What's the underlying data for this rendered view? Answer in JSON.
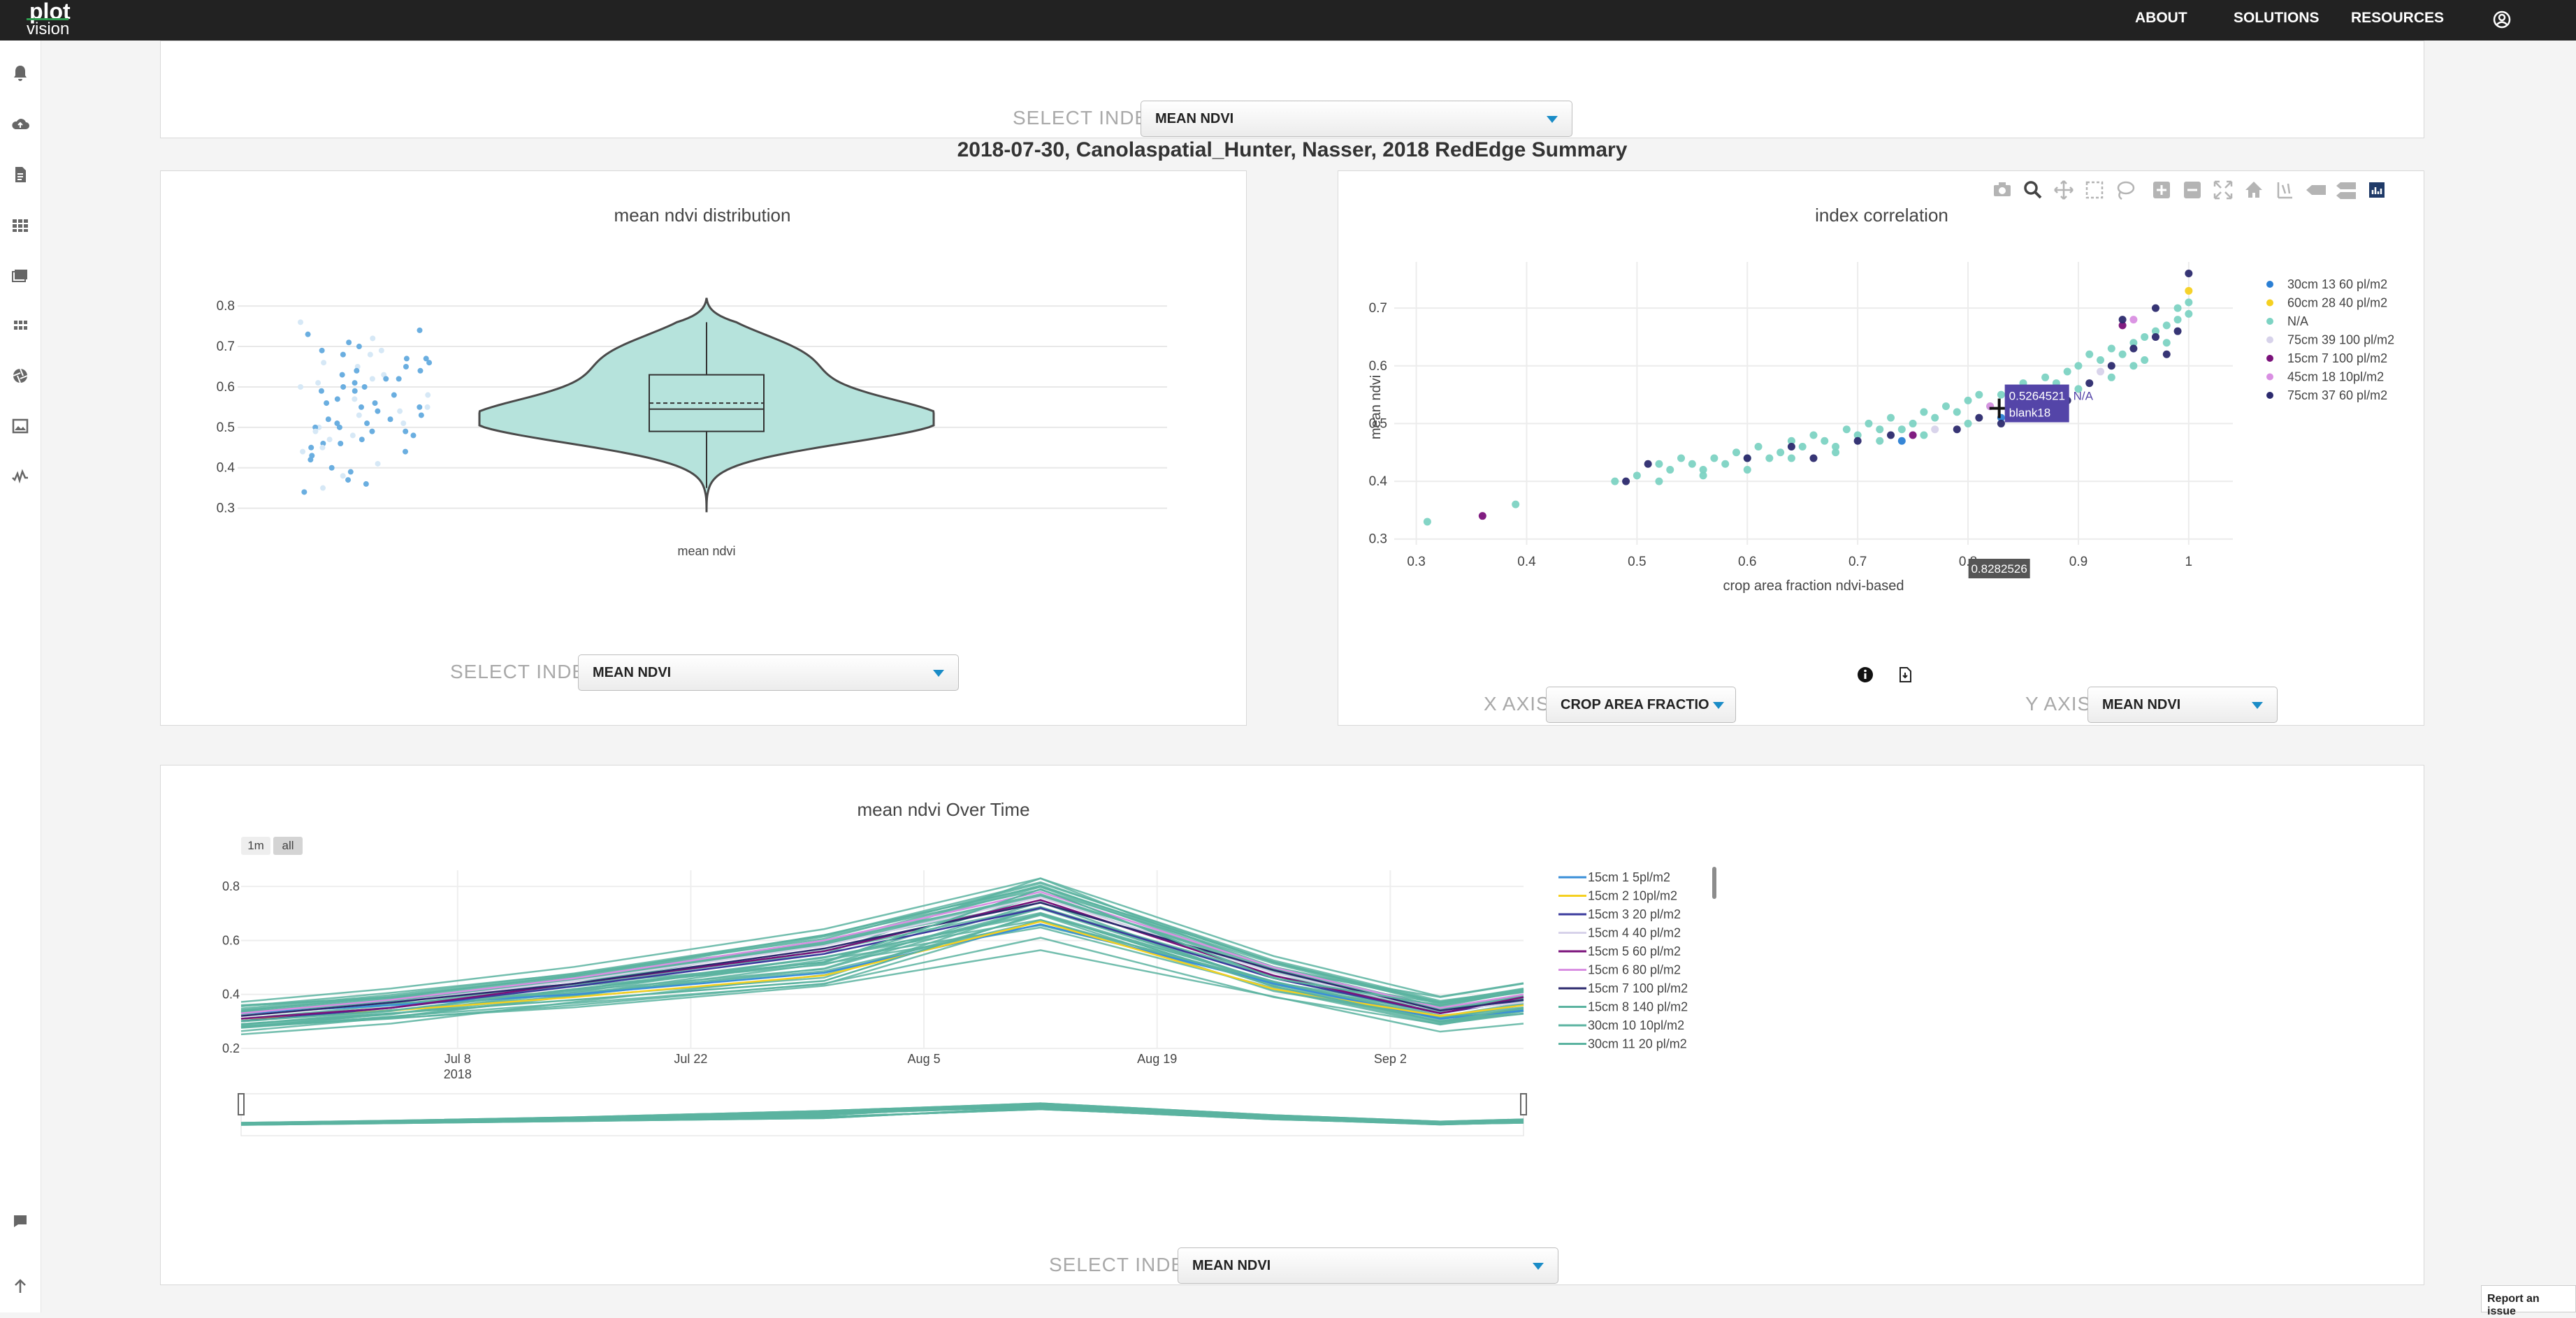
{
  "nav": {
    "logo_top": "plot",
    "logo_bottom": "vision",
    "links": [
      "ABOUT",
      "SOLUTIONS",
      "RESOURCES"
    ]
  },
  "sidebar": {
    "icons": [
      "bell-icon",
      "cloud-upload-icon",
      "document-icon",
      "grid-icon",
      "images-icon",
      "apps-icon",
      "aperture-icon",
      "gallery-icon",
      "chart-check-icon"
    ],
    "bottom_icons": [
      "comment-icon",
      "arrow-up-icon"
    ]
  },
  "top_panel": {
    "select_label": "SELECT INDEX",
    "select_value": "MEAN NDVI"
  },
  "page_title": "2018-07-30, Canolaspatial_Hunter, Nasser, 2018 RedEdge Summary",
  "distribution": {
    "select_label": "SELECT INDEX",
    "select_value": "MEAN NDVI"
  },
  "correlation": {
    "x_axis_label": "X AXIS",
    "x_axis_value": "CROP AREA FRACTIO",
    "y_axis_label": "Y AXIS",
    "y_axis_value": "MEAN NDVI",
    "tooltip_value": "0.5264521",
    "tooltip_name": "blank18",
    "tooltip_series": "N/A",
    "x_hover": "0.8282526",
    "modebar": [
      "camera-icon",
      "zoom-icon",
      "pan-icon",
      "box-select-icon",
      "lasso-icon",
      "zoom-in-icon",
      "zoom-out-icon",
      "autoscale-icon",
      "home-icon",
      "spike-lines-icon",
      "hover-closest-icon",
      "hover-compare-icon",
      "plotly-logo-icon"
    ],
    "info_icons": [
      "info-icon",
      "export-icon"
    ]
  },
  "timeseries": {
    "select_label": "SELECT INDEX",
    "select_value": "MEAN NDVI",
    "range_buttons": [
      "1m",
      "all"
    ]
  },
  "report_button": "Report an issue",
  "colors": {
    "teal": "#7dd3c3",
    "teal_line": "#5bb3a0",
    "point_blue": "#6aaee0",
    "navy": "#2c2a6e",
    "tooltip_bg": "#5445a8"
  },
  "chart_data": [
    {
      "type": "violin",
      "title": "mean ndvi distribution",
      "xlabel": "",
      "categories": [
        "mean ndvi"
      ],
      "y_ticks": [
        "0.8",
        "0.7",
        "0.6",
        "0.5",
        "0.4",
        "0.3"
      ],
      "ylim": [
        0.27,
        0.84
      ],
      "box": {
        "q1": 0.49,
        "median": 0.545,
        "mean": 0.56,
        "q3": 0.63,
        "lower_whisker": 0.35,
        "upper_whisker": 0.76
      },
      "kde_max": 0.82,
      "kde_min": 0.29,
      "points": [
        0.76,
        0.74,
        0.73,
        0.72,
        0.71,
        0.7,
        0.69,
        0.69,
        0.68,
        0.68,
        0.67,
        0.67,
        0.66,
        0.66,
        0.65,
        0.65,
        0.64,
        0.64,
        0.63,
        0.63,
        0.62,
        0.62,
        0.62,
        0.61,
        0.61,
        0.6,
        0.6,
        0.6,
        0.59,
        0.59,
        0.58,
        0.58,
        0.57,
        0.57,
        0.56,
        0.56,
        0.55,
        0.55,
        0.55,
        0.54,
        0.54,
        0.53,
        0.53,
        0.52,
        0.52,
        0.51,
        0.51,
        0.51,
        0.5,
        0.5,
        0.5,
        0.49,
        0.49,
        0.49,
        0.48,
        0.48,
        0.47,
        0.47,
        0.46,
        0.46,
        0.45,
        0.45,
        0.44,
        0.44,
        0.43,
        0.42,
        0.41,
        0.4,
        0.39,
        0.38,
        0.37,
        0.36,
        0.35,
        0.34
      ]
    },
    {
      "type": "scatter",
      "title": "index correlation",
      "xlabel": "crop area fraction ndvi-based",
      "ylabel": "mean ndvi",
      "x_ticks": [
        "0.3",
        "0.4",
        "0.5",
        "0.6",
        "0.7",
        "0.8",
        "0.9",
        "1"
      ],
      "y_ticks": [
        "0.7",
        "0.6",
        "0.5",
        "0.4",
        "0.3"
      ],
      "xlim": [
        0.28,
        1.04
      ],
      "ylim": [
        0.29,
        0.78
      ],
      "series": [
        {
          "name": "30cm 13 60 pl/m2",
          "color": "#2b7fd4",
          "points": [
            [
              0.74,
              0.47
            ],
            [
              0.83,
              0.51
            ]
          ]
        },
        {
          "name": "60cm 28 40 pl/m2",
          "color": "#f5d020",
          "points": [
            [
              1.0,
              0.73
            ]
          ]
        },
        {
          "name": "N/A",
          "color": "#7dd3c3",
          "points": [
            [
              0.31,
              0.33
            ],
            [
              0.39,
              0.36
            ],
            [
              0.48,
              0.4
            ],
            [
              0.5,
              0.41
            ],
            [
              0.52,
              0.43
            ],
            [
              0.53,
              0.42
            ],
            [
              0.54,
              0.44
            ],
            [
              0.55,
              0.43
            ],
            [
              0.56,
              0.42
            ],
            [
              0.57,
              0.44
            ],
            [
              0.58,
              0.43
            ],
            [
              0.59,
              0.45
            ],
            [
              0.6,
              0.44
            ],
            [
              0.61,
              0.46
            ],
            [
              0.62,
              0.44
            ],
            [
              0.63,
              0.45
            ],
            [
              0.64,
              0.47
            ],
            [
              0.65,
              0.46
            ],
            [
              0.66,
              0.48
            ],
            [
              0.67,
              0.47
            ],
            [
              0.68,
              0.46
            ],
            [
              0.69,
              0.49
            ],
            [
              0.7,
              0.48
            ],
            [
              0.71,
              0.5
            ],
            [
              0.72,
              0.49
            ],
            [
              0.73,
              0.51
            ],
            [
              0.74,
              0.49
            ],
            [
              0.75,
              0.5
            ],
            [
              0.76,
              0.52
            ],
            [
              0.77,
              0.51
            ],
            [
              0.78,
              0.53
            ],
            [
              0.79,
              0.52
            ],
            [
              0.8,
              0.54
            ],
            [
              0.81,
              0.55
            ],
            [
              0.82,
              0.53
            ],
            [
              0.83,
              0.55
            ],
            [
              0.84,
              0.54
            ],
            [
              0.85,
              0.57
            ],
            [
              0.86,
              0.56
            ],
            [
              0.87,
              0.58
            ],
            [
              0.88,
              0.57
            ],
            [
              0.89,
              0.59
            ],
            [
              0.9,
              0.6
            ],
            [
              0.91,
              0.62
            ],
            [
              0.92,
              0.61
            ],
            [
              0.93,
              0.63
            ],
            [
              0.94,
              0.62
            ],
            [
              0.95,
              0.64
            ],
            [
              0.96,
              0.65
            ],
            [
              0.97,
              0.66
            ],
            [
              0.98,
              0.67
            ],
            [
              0.99,
              0.68
            ],
            [
              1.0,
              0.69
            ],
            [
              0.96,
              0.61
            ],
            [
              0.98,
              0.64
            ],
            [
              0.99,
              0.7
            ],
            [
              1.0,
              0.71
            ],
            [
              0.95,
              0.6
            ],
            [
              0.93,
              0.58
            ],
            [
              0.9,
              0.56
            ],
            [
              0.87,
              0.54
            ],
            [
              0.84,
              0.52
            ],
            [
              0.8,
              0.5
            ],
            [
              0.76,
              0.48
            ],
            [
              0.72,
              0.47
            ],
            [
              0.68,
              0.45
            ],
            [
              0.64,
              0.44
            ],
            [
              0.6,
              0.42
            ],
            [
              0.56,
              0.41
            ],
            [
              0.52,
              0.4
            ]
          ]
        },
        {
          "name": "75cm 39 100 pl/m2",
          "color": "#d7d2ea",
          "points": [
            [
              0.77,
              0.49
            ],
            [
              0.92,
              0.59
            ]
          ]
        },
        {
          "name": "15cm 7 100 pl/m2",
          "color": "#7a117a",
          "points": [
            [
              0.36,
              0.34
            ],
            [
              0.75,
              0.48
            ],
            [
              0.94,
              0.67
            ]
          ]
        },
        {
          "name": "45cm 18 10pl/m2",
          "color": "#d98fe2",
          "points": [
            [
              0.82,
              0.53
            ],
            [
              0.95,
              0.68
            ]
          ]
        },
        {
          "name": "75cm 37 60 pl/m2",
          "color": "#2c2a6e",
          "points": [
            [
              0.49,
              0.4
            ],
            [
              0.51,
              0.43
            ],
            [
              0.6,
              0.44
            ],
            [
              0.64,
              0.46
            ],
            [
              0.66,
              0.44
            ],
            [
              0.7,
              0.47
            ],
            [
              0.73,
              0.48
            ],
            [
              0.79,
              0.49
            ],
            [
              0.81,
              0.51
            ],
            [
              0.83,
              0.5
            ],
            [
              0.86,
              0.52
            ],
            [
              0.89,
              0.54
            ],
            [
              0.91,
              0.57
            ],
            [
              0.93,
              0.6
            ],
            [
              0.95,
              0.63
            ],
            [
              0.97,
              0.65
            ],
            [
              0.98,
              0.62
            ],
            [
              0.99,
              0.66
            ],
            [
              1.0,
              0.76
            ],
            [
              0.97,
              0.7
            ],
            [
              0.94,
              0.68
            ]
          ]
        }
      ]
    },
    {
      "type": "line",
      "title": "mean ndvi Over Time",
      "x_ticks": [
        "Jul 8\n2018",
        "Jul 22",
        "Aug 5",
        "Aug 19",
        "Sep 2"
      ],
      "y_ticks": [
        "0.8",
        "0.6",
        "0.4",
        "0.2"
      ],
      "dates": [
        "2018-06-25",
        "2018-07-04",
        "2018-07-15",
        "2018-07-30",
        "2018-08-12",
        "2018-08-26",
        "2018-09-05",
        "2018-09-10"
      ],
      "ylim": [
        0.2,
        0.86
      ],
      "series": [
        {
          "name": "15cm 1 5pl/m2",
          "color": "#3a8fd8",
          "values": [
            0.33,
            0.36,
            0.4,
            0.48,
            0.66,
            0.44,
            0.31,
            0.34
          ]
        },
        {
          "name": "15cm 2 10pl/m2",
          "color": "#f5d020",
          "values": [
            0.31,
            0.34,
            0.39,
            0.47,
            0.67,
            0.42,
            0.32,
            0.36
          ]
        },
        {
          "name": "15cm 3 20 pl/m2",
          "color": "#3b3b9e",
          "values": [
            0.3,
            0.35,
            0.43,
            0.55,
            0.72,
            0.46,
            0.33,
            0.38
          ]
        },
        {
          "name": "15cm 4 40 pl/m2",
          "color": "#d7d2ea",
          "values": [
            0.32,
            0.37,
            0.45,
            0.58,
            0.76,
            0.48,
            0.34,
            0.37
          ]
        },
        {
          "name": "15cm 5 60 pl/m2",
          "color": "#7a117a",
          "values": [
            0.31,
            0.35,
            0.44,
            0.56,
            0.75,
            0.47,
            0.33,
            0.39
          ]
        },
        {
          "name": "15cm 6 80 pl/m2",
          "color": "#d98fe2",
          "values": [
            0.33,
            0.38,
            0.46,
            0.6,
            0.78,
            0.5,
            0.35,
            0.4
          ]
        },
        {
          "name": "15cm 7 100 pl/m2",
          "color": "#2c2a6e",
          "values": [
            0.32,
            0.37,
            0.44,
            0.57,
            0.74,
            0.49,
            0.34,
            0.38
          ]
        },
        {
          "name": "15cm 8 140 pl/m2",
          "color": "#5bb3a0",
          "values": [
            0.3,
            0.34,
            0.42,
            0.52,
            0.79,
            0.46,
            0.36,
            0.41
          ]
        },
        {
          "name": "30cm 10 10pl/m2",
          "color": "#5bb3a0",
          "values": [
            0.34,
            0.39,
            0.47,
            0.62,
            0.8,
            0.52,
            0.37,
            0.42
          ]
        },
        {
          "name": "30cm 11 20 pl/m2",
          "color": "#5bb3a0",
          "values": [
            0.29,
            0.33,
            0.38,
            0.45,
            0.7,
            0.43,
            0.3,
            0.35
          ]
        }
      ]
    }
  ]
}
